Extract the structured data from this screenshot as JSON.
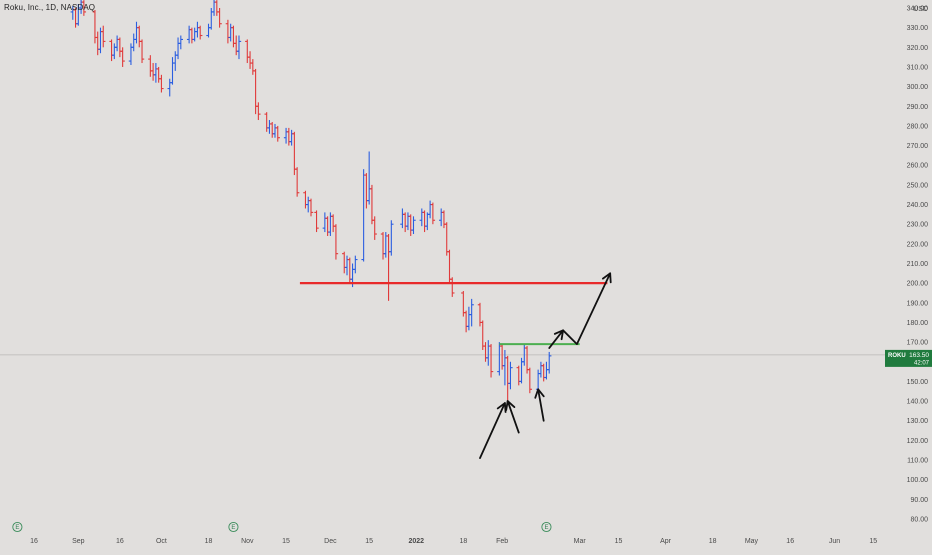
{
  "header": {
    "title": "Roku, Inc., 1D, NASDAQ",
    "currency": "USD"
  },
  "price_tag": {
    "symbol": "ROKU",
    "price": "163.50",
    "countdown": "42:07",
    "color": "#207b3e"
  },
  "event_badge_label": "E",
  "colors": {
    "background": "#e1dfdd",
    "up_bar": "#2b5ee0",
    "down_bar": "#e03a3a",
    "resistance_line": "#e82a2a",
    "support_line": "#4caf50",
    "annotation": "#111111"
  },
  "chart_data": {
    "type": "ohlc",
    "title": "Roku, Inc., 1D, NASDAQ",
    "y_axis": {
      "ticks": [
        80,
        90,
        100,
        110,
        120,
        130,
        140,
        150,
        160,
        170,
        180,
        190,
        200,
        210,
        220,
        230,
        240,
        250,
        260,
        270,
        280,
        290,
        300,
        310,
        320,
        330,
        340
      ],
      "labels": [
        "80.00",
        "90.00",
        "100.00",
        "110.00",
        "120.00",
        "130.00",
        "140.00",
        "150.00",
        "160.00",
        "170.00",
        "180.00",
        "190.00",
        "200.00",
        "210.00",
        "220.00",
        "230.00",
        "240.00",
        "250.00",
        "260.00",
        "270.00",
        "280.00",
        "290.00",
        "300.00",
        "310.00",
        "320.00",
        "330.00",
        "340.00"
      ],
      "ylim": [
        78,
        345
      ],
      "currency": "USD"
    },
    "x_axis": {
      "labels": [
        {
          "t": "16",
          "d": "2021-08-16"
        },
        {
          "t": "Sep",
          "d": "2021-09-01"
        },
        {
          "t": "16",
          "d": "2021-09-16"
        },
        {
          "t": "Oct",
          "d": "2021-10-01"
        },
        {
          "t": "18",
          "d": "2021-10-18"
        },
        {
          "t": "Nov",
          "d": "2021-11-01"
        },
        {
          "t": "15",
          "d": "2021-11-15"
        },
        {
          "t": "Dec",
          "d": "2021-12-01"
        },
        {
          "t": "15",
          "d": "2021-12-15"
        },
        {
          "t": "2022",
          "d": "2022-01-01",
          "bold": true
        },
        {
          "t": "18",
          "d": "2022-01-18"
        },
        {
          "t": "Feb",
          "d": "2022-02-01"
        },
        {
          "t": "Mar",
          "d": "2022-03-01"
        },
        {
          "t": "15",
          "d": "2022-03-15"
        },
        {
          "t": "Apr",
          "d": "2022-04-01"
        },
        {
          "t": "18",
          "d": "2022-04-18"
        },
        {
          "t": "May",
          "d": "2022-05-02"
        },
        {
          "t": "16",
          "d": "2022-05-16"
        },
        {
          "t": "Jun",
          "d": "2022-06-01"
        },
        {
          "t": "15",
          "d": "2022-06-15"
        }
      ]
    },
    "last_price": 163.5,
    "bars": [
      {
        "d": "2021-08-30",
        "o": 338,
        "h": 341,
        "l": 334,
        "c": 339
      },
      {
        "d": "2021-08-31",
        "o": 339,
        "h": 340,
        "l": 330,
        "c": 332
      },
      {
        "d": "2021-09-01",
        "o": 332,
        "h": 342,
        "l": 331,
        "c": 340
      },
      {
        "d": "2021-09-02",
        "o": 340,
        "h": 345,
        "l": 337,
        "c": 343
      },
      {
        "d": "2021-09-03",
        "o": 343,
        "h": 344,
        "l": 336,
        "c": 338
      },
      {
        "d": "2021-09-07",
        "o": 338,
        "h": 339,
        "l": 322,
        "c": 325
      },
      {
        "d": "2021-09-08",
        "o": 325,
        "h": 328,
        "l": 316,
        "c": 319
      },
      {
        "d": "2021-09-09",
        "o": 319,
        "h": 330,
        "l": 317,
        "c": 328
      },
      {
        "d": "2021-09-10",
        "o": 328,
        "h": 331,
        "l": 320,
        "c": 323
      },
      {
        "d": "2021-09-13",
        "o": 323,
        "h": 324,
        "l": 313,
        "c": 316
      },
      {
        "d": "2021-09-14",
        "o": 316,
        "h": 322,
        "l": 314,
        "c": 320
      },
      {
        "d": "2021-09-15",
        "o": 320,
        "h": 326,
        "l": 318,
        "c": 324
      },
      {
        "d": "2021-09-16",
        "o": 324,
        "h": 325,
        "l": 315,
        "c": 318
      },
      {
        "d": "2021-09-17",
        "o": 318,
        "h": 320,
        "l": 310,
        "c": 313
      },
      {
        "d": "2021-09-20",
        "o": 313,
        "h": 322,
        "l": 311,
        "c": 320
      },
      {
        "d": "2021-09-21",
        "o": 320,
        "h": 327,
        "l": 318,
        "c": 324
      },
      {
        "d": "2021-09-22",
        "o": 324,
        "h": 333,
        "l": 322,
        "c": 330
      },
      {
        "d": "2021-09-23",
        "o": 330,
        "h": 331,
        "l": 320,
        "c": 323
      },
      {
        "d": "2021-09-24",
        "o": 323,
        "h": 324,
        "l": 312,
        "c": 314
      },
      {
        "d": "2021-09-27",
        "o": 314,
        "h": 316,
        "l": 305,
        "c": 308
      },
      {
        "d": "2021-09-28",
        "o": 308,
        "h": 312,
        "l": 303,
        "c": 306
      },
      {
        "d": "2021-09-29",
        "o": 306,
        "h": 312,
        "l": 302,
        "c": 309
      },
      {
        "d": "2021-09-30",
        "o": 309,
        "h": 310,
        "l": 302,
        "c": 304
      },
      {
        "d": "2021-10-01",
        "o": 304,
        "h": 306,
        "l": 297,
        "c": 299
      },
      {
        "d": "2021-10-04",
        "o": 299,
        "h": 304,
        "l": 295,
        "c": 302
      },
      {
        "d": "2021-10-05",
        "o": 302,
        "h": 315,
        "l": 301,
        "c": 312
      },
      {
        "d": "2021-10-06",
        "o": 312,
        "h": 318,
        "l": 308,
        "c": 316
      },
      {
        "d": "2021-10-07",
        "o": 316,
        "h": 325,
        "l": 314,
        "c": 322
      },
      {
        "d": "2021-10-08",
        "o": 322,
        "h": 326,
        "l": 319,
        "c": 324
      },
      {
        "d": "2021-10-11",
        "o": 324,
        "h": 331,
        "l": 322,
        "c": 329
      },
      {
        "d": "2021-10-12",
        "o": 329,
        "h": 330,
        "l": 322,
        "c": 324
      },
      {
        "d": "2021-10-13",
        "o": 324,
        "h": 330,
        "l": 323,
        "c": 328
      },
      {
        "d": "2021-10-14",
        "o": 328,
        "h": 333,
        "l": 325,
        "c": 330
      },
      {
        "d": "2021-10-15",
        "o": 330,
        "h": 331,
        "l": 324,
        "c": 326
      },
      {
        "d": "2021-10-18",
        "o": 326,
        "h": 332,
        "l": 325,
        "c": 330
      },
      {
        "d": "2021-10-19",
        "o": 330,
        "h": 340,
        "l": 329,
        "c": 338
      },
      {
        "d": "2021-10-20",
        "o": 338,
        "h": 345,
        "l": 336,
        "c": 343
      },
      {
        "d": "2021-10-21",
        "o": 343,
        "h": 344,
        "l": 336,
        "c": 338
      },
      {
        "d": "2021-10-22",
        "o": 338,
        "h": 340,
        "l": 330,
        "c": 332
      },
      {
        "d": "2021-10-25",
        "o": 332,
        "h": 334,
        "l": 322,
        "c": 325
      },
      {
        "d": "2021-10-26",
        "o": 325,
        "h": 332,
        "l": 323,
        "c": 330
      },
      {
        "d": "2021-10-27",
        "o": 330,
        "h": 331,
        "l": 320,
        "c": 322
      },
      {
        "d": "2021-10-28",
        "o": 322,
        "h": 326,
        "l": 316,
        "c": 318
      },
      {
        "d": "2021-10-29",
        "o": 318,
        "h": 326,
        "l": 314,
        "c": 323
      },
      {
        "d": "2021-11-01",
        "o": 323,
        "h": 324,
        "l": 312,
        "c": 315
      },
      {
        "d": "2021-11-02",
        "o": 315,
        "h": 318,
        "l": 309,
        "c": 312
      },
      {
        "d": "2021-11-03",
        "o": 312,
        "h": 314,
        "l": 306,
        "c": 308
      },
      {
        "d": "2021-11-04",
        "o": 308,
        "h": 309,
        "l": 286,
        "c": 290
      },
      {
        "d": "2021-11-05",
        "o": 290,
        "h": 292,
        "l": 283,
        "c": 286
      },
      {
        "d": "2021-11-08",
        "o": 286,
        "h": 287,
        "l": 277,
        "c": 279
      },
      {
        "d": "2021-11-09",
        "o": 279,
        "h": 283,
        "l": 276,
        "c": 281
      },
      {
        "d": "2021-11-10",
        "o": 281,
        "h": 282,
        "l": 274,
        "c": 276
      },
      {
        "d": "2021-11-11",
        "o": 276,
        "h": 281,
        "l": 274,
        "c": 279
      },
      {
        "d": "2021-11-12",
        "o": 279,
        "h": 280,
        "l": 272,
        "c": 274
      },
      {
        "d": "2021-11-15",
        "o": 274,
        "h": 279,
        "l": 271,
        "c": 277
      },
      {
        "d": "2021-11-16",
        "o": 277,
        "h": 279,
        "l": 270,
        "c": 272
      },
      {
        "d": "2021-11-17",
        "o": 272,
        "h": 278,
        "l": 270,
        "c": 276
      },
      {
        "d": "2021-11-18",
        "o": 276,
        "h": 277,
        "l": 255,
        "c": 258
      },
      {
        "d": "2021-11-19",
        "o": 258,
        "h": 259,
        "l": 244,
        "c": 246
      },
      {
        "d": "2021-11-22",
        "o": 246,
        "h": 247,
        "l": 238,
        "c": 240
      },
      {
        "d": "2021-11-23",
        "o": 240,
        "h": 244,
        "l": 236,
        "c": 242
      },
      {
        "d": "2021-11-24",
        "o": 242,
        "h": 243,
        "l": 234,
        "c": 236
      },
      {
        "d": "2021-11-26",
        "o": 236,
        "h": 237,
        "l": 226,
        "c": 228
      },
      {
        "d": "2021-11-29",
        "o": 228,
        "h": 236,
        "l": 226,
        "c": 233
      },
      {
        "d": "2021-11-30",
        "o": 233,
        "h": 234,
        "l": 224,
        "c": 226
      },
      {
        "d": "2021-12-01",
        "o": 226,
        "h": 236,
        "l": 224,
        "c": 234
      },
      {
        "d": "2021-12-02",
        "o": 234,
        "h": 235,
        "l": 226,
        "c": 229
      },
      {
        "d": "2021-12-03",
        "o": 229,
        "h": 230,
        "l": 212,
        "c": 215
      },
      {
        "d": "2021-12-06",
        "o": 215,
        "h": 216,
        "l": 205,
        "c": 208
      },
      {
        "d": "2021-12-07",
        "o": 208,
        "h": 214,
        "l": 204,
        "c": 212
      },
      {
        "d": "2021-12-08",
        "o": 212,
        "h": 213,
        "l": 200,
        "c": 202
      },
      {
        "d": "2021-12-09",
        "o": 202,
        "h": 210,
        "l": 198,
        "c": 207
      },
      {
        "d": "2021-12-10",
        "o": 207,
        "h": 214,
        "l": 205,
        "c": 212
      },
      {
        "d": "2021-12-13",
        "o": 212,
        "h": 258,
        "l": 211,
        "c": 255
      },
      {
        "d": "2021-12-14",
        "o": 255,
        "h": 256,
        "l": 238,
        "c": 242
      },
      {
        "d": "2021-12-15",
        "o": 242,
        "h": 267,
        "l": 240,
        "c": 248
      },
      {
        "d": "2021-12-16",
        "o": 248,
        "h": 250,
        "l": 230,
        "c": 232
      },
      {
        "d": "2021-12-17",
        "o": 232,
        "h": 234,
        "l": 222,
        "c": 225
      },
      {
        "d": "2021-12-20",
        "o": 225,
        "h": 226,
        "l": 212,
        "c": 215
      },
      {
        "d": "2021-12-21",
        "o": 215,
        "h": 226,
        "l": 213,
        "c": 224
      },
      {
        "d": "2021-12-22",
        "o": 224,
        "h": 225,
        "l": 191,
        "c": 216
      },
      {
        "d": "2021-12-23",
        "o": 216,
        "h": 232,
        "l": 214,
        "c": 230
      },
      {
        "d": "2021-12-27",
        "o": 230,
        "h": 238,
        "l": 228,
        "c": 235
      },
      {
        "d": "2021-12-28",
        "o": 235,
        "h": 236,
        "l": 226,
        "c": 229
      },
      {
        "d": "2021-12-29",
        "o": 229,
        "h": 236,
        "l": 227,
        "c": 234
      },
      {
        "d": "2021-12-30",
        "o": 234,
        "h": 235,
        "l": 224,
        "c": 227
      },
      {
        "d": "2021-12-31",
        "o": 227,
        "h": 234,
        "l": 225,
        "c": 232
      },
      {
        "d": "2022-01-03",
        "o": 232,
        "h": 238,
        "l": 229,
        "c": 236
      },
      {
        "d": "2022-01-04",
        "o": 236,
        "h": 237,
        "l": 226,
        "c": 229
      },
      {
        "d": "2022-01-05",
        "o": 229,
        "h": 236,
        "l": 227,
        "c": 235
      },
      {
        "d": "2022-01-06",
        "o": 235,
        "h": 242,
        "l": 233,
        "c": 240
      },
      {
        "d": "2022-01-07",
        "o": 240,
        "h": 241,
        "l": 230,
        "c": 232
      },
      {
        "d": "2022-01-10",
        "o": 232,
        "h": 238,
        "l": 229,
        "c": 236
      },
      {
        "d": "2022-01-11",
        "o": 236,
        "h": 237,
        "l": 228,
        "c": 230
      },
      {
        "d": "2022-01-12",
        "o": 230,
        "h": 231,
        "l": 214,
        "c": 216
      },
      {
        "d": "2022-01-13",
        "o": 216,
        "h": 217,
        "l": 200,
        "c": 202
      },
      {
        "d": "2022-01-14",
        "o": 202,
        "h": 203,
        "l": 193,
        "c": 195
      },
      {
        "d": "2022-01-18",
        "o": 195,
        "h": 196,
        "l": 183,
        "c": 185
      },
      {
        "d": "2022-01-19",
        "o": 185,
        "h": 186,
        "l": 175,
        "c": 178
      },
      {
        "d": "2022-01-20",
        "o": 178,
        "h": 188,
        "l": 176,
        "c": 184
      },
      {
        "d": "2022-01-21",
        "o": 184,
        "h": 192,
        "l": 178,
        "c": 189
      },
      {
        "d": "2022-01-24",
        "o": 189,
        "h": 190,
        "l": 178,
        "c": 180
      },
      {
        "d": "2022-01-25",
        "o": 180,
        "h": 181,
        "l": 166,
        "c": 168
      },
      {
        "d": "2022-01-26",
        "o": 168,
        "h": 170,
        "l": 160,
        "c": 162
      },
      {
        "d": "2022-01-27",
        "o": 162,
        "h": 171,
        "l": 158,
        "c": 168
      },
      {
        "d": "2022-01-28",
        "o": 168,
        "h": 169,
        "l": 152,
        "c": 155
      },
      {
        "d": "2022-01-31",
        "o": 155,
        "h": 170,
        "l": 153,
        "c": 168
      },
      {
        "d": "2022-02-01",
        "o": 168,
        "h": 169,
        "l": 156,
        "c": 158
      },
      {
        "d": "2022-02-02",
        "o": 158,
        "h": 166,
        "l": 148,
        "c": 162
      },
      {
        "d": "2022-02-03",
        "o": 162,
        "h": 163,
        "l": 140,
        "c": 149
      },
      {
        "d": "2022-02-04",
        "o": 149,
        "h": 160,
        "l": 146,
        "c": 157
      },
      {
        "d": "2022-02-07",
        "o": 157,
        "h": 158,
        "l": 148,
        "c": 150
      },
      {
        "d": "2022-02-08",
        "o": 150,
        "h": 162,
        "l": 149,
        "c": 160
      },
      {
        "d": "2022-02-09",
        "o": 160,
        "h": 169,
        "l": 158,
        "c": 167
      },
      {
        "d": "2022-02-10",
        "o": 167,
        "h": 168,
        "l": 154,
        "c": 156
      },
      {
        "d": "2022-02-11",
        "o": 156,
        "h": 157,
        "l": 144,
        "c": 146
      },
      {
        "d": "2022-02-14",
        "o": 146,
        "h": 156,
        "l": 145,
        "c": 154
      },
      {
        "d": "2022-02-15",
        "o": 154,
        "h": 160,
        "l": 152,
        "c": 158
      },
      {
        "d": "2022-02-16",
        "o": 158,
        "h": 159,
        "l": 150,
        "c": 152
      },
      {
        "d": "2022-02-17",
        "o": 152,
        "h": 160,
        "l": 151,
        "c": 156
      },
      {
        "d": "2022-02-18",
        "o": 156,
        "h": 165,
        "l": 154,
        "c": 163
      }
    ],
    "horizontal_lines": [
      {
        "name": "resistance",
        "y": 200,
        "d_start": "2021-11-20",
        "d_end": "2022-03-11",
        "color": "#e82a2a"
      },
      {
        "name": "support",
        "y": 169,
        "d_start": "2022-01-31",
        "d_end": "2022-03-01",
        "color": "#4caf50"
      }
    ],
    "annotations": {
      "lows_arrows": [
        {
          "d1": "2022-01-24",
          "p1": 111,
          "d2": "2022-02-02",
          "p2": 139
        },
        {
          "d1": "2022-02-07",
          "p1": 124,
          "d2": "2022-02-03",
          "p2": 140
        },
        {
          "d1": "2022-02-16",
          "p1": 130,
          "d2": "2022-02-14",
          "p2": 146
        }
      ],
      "projection_path": [
        {
          "d": "2022-02-18",
          "p": 167
        },
        {
          "d": "2022-02-23",
          "p": 176
        },
        {
          "d": "2022-02-28",
          "p": 169
        },
        {
          "d": "2022-03-12",
          "p": 205
        }
      ],
      "projection_heads": [
        {
          "d": "2022-02-23",
          "p": 176
        },
        {
          "d": "2022-03-12",
          "p": 205
        }
      ]
    },
    "event_badges": [
      "2021-08-10",
      "2021-10-27",
      "2022-02-17"
    ]
  }
}
